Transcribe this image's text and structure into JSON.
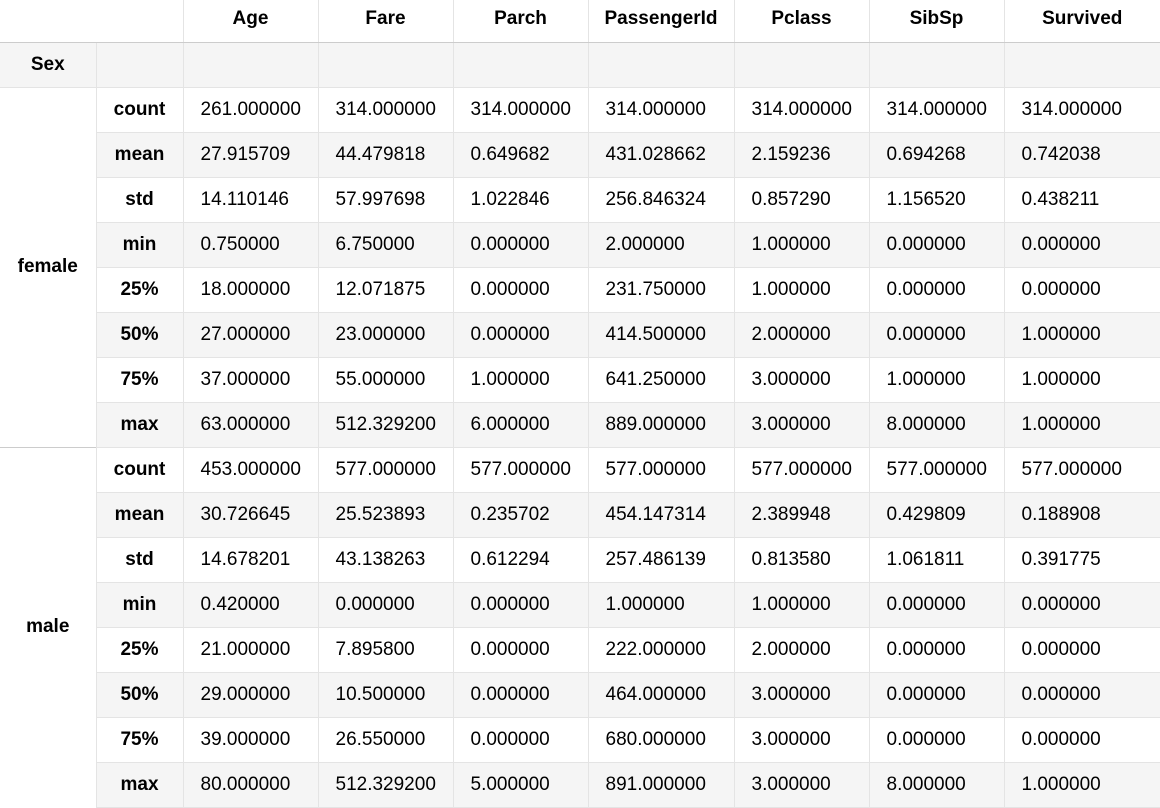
{
  "table": {
    "index_name": "Sex",
    "columns": [
      "Age",
      "Fare",
      "Parch",
      "PassengerId",
      "Pclass",
      "SibSp",
      "Survived"
    ],
    "groups": [
      {
        "name": "female",
        "rows": [
          {
            "stat": "count",
            "values": [
              "261.000000",
              "314.000000",
              "314.000000",
              "314.000000",
              "314.000000",
              "314.000000",
              "314.000000"
            ]
          },
          {
            "stat": "mean",
            "values": [
              "27.915709",
              "44.479818",
              "0.649682",
              "431.028662",
              "2.159236",
              "0.694268",
              "0.742038"
            ]
          },
          {
            "stat": "std",
            "values": [
              "14.110146",
              "57.997698",
              "1.022846",
              "256.846324",
              "0.857290",
              "1.156520",
              "0.438211"
            ]
          },
          {
            "stat": "min",
            "values": [
              "0.750000",
              "6.750000",
              "0.000000",
              "2.000000",
              "1.000000",
              "0.000000",
              "0.000000"
            ]
          },
          {
            "stat": "25%",
            "values": [
              "18.000000",
              "12.071875",
              "0.000000",
              "231.750000",
              "1.000000",
              "0.000000",
              "0.000000"
            ]
          },
          {
            "stat": "50%",
            "values": [
              "27.000000",
              "23.000000",
              "0.000000",
              "414.500000",
              "2.000000",
              "0.000000",
              "1.000000"
            ]
          },
          {
            "stat": "75%",
            "values": [
              "37.000000",
              "55.000000",
              "1.000000",
              "641.250000",
              "3.000000",
              "1.000000",
              "1.000000"
            ]
          },
          {
            "stat": "max",
            "values": [
              "63.000000",
              "512.329200",
              "6.000000",
              "889.000000",
              "3.000000",
              "8.000000",
              "1.000000"
            ]
          }
        ]
      },
      {
        "name": "male",
        "rows": [
          {
            "stat": "count",
            "values": [
              "453.000000",
              "577.000000",
              "577.000000",
              "577.000000",
              "577.000000",
              "577.000000",
              "577.000000"
            ]
          },
          {
            "stat": "mean",
            "values": [
              "30.726645",
              "25.523893",
              "0.235702",
              "454.147314",
              "2.389948",
              "0.429809",
              "0.188908"
            ]
          },
          {
            "stat": "std",
            "values": [
              "14.678201",
              "43.138263",
              "0.612294",
              "257.486139",
              "0.813580",
              "1.061811",
              "0.391775"
            ]
          },
          {
            "stat": "min",
            "values": [
              "0.420000",
              "0.000000",
              "0.000000",
              "1.000000",
              "1.000000",
              "0.000000",
              "0.000000"
            ]
          },
          {
            "stat": "25%",
            "values": [
              "21.000000",
              "7.895800",
              "0.000000",
              "222.000000",
              "2.000000",
              "0.000000",
              "0.000000"
            ]
          },
          {
            "stat": "50%",
            "values": [
              "29.000000",
              "10.500000",
              "0.000000",
              "464.000000",
              "3.000000",
              "0.000000",
              "0.000000"
            ]
          },
          {
            "stat": "75%",
            "values": [
              "39.000000",
              "26.550000",
              "0.000000",
              "680.000000",
              "3.000000",
              "0.000000",
              "0.000000"
            ]
          },
          {
            "stat": "max",
            "values": [
              "80.000000",
              "512.329200",
              "5.000000",
              "891.000000",
              "3.000000",
              "8.000000",
              "1.000000"
            ]
          }
        ]
      }
    ]
  }
}
